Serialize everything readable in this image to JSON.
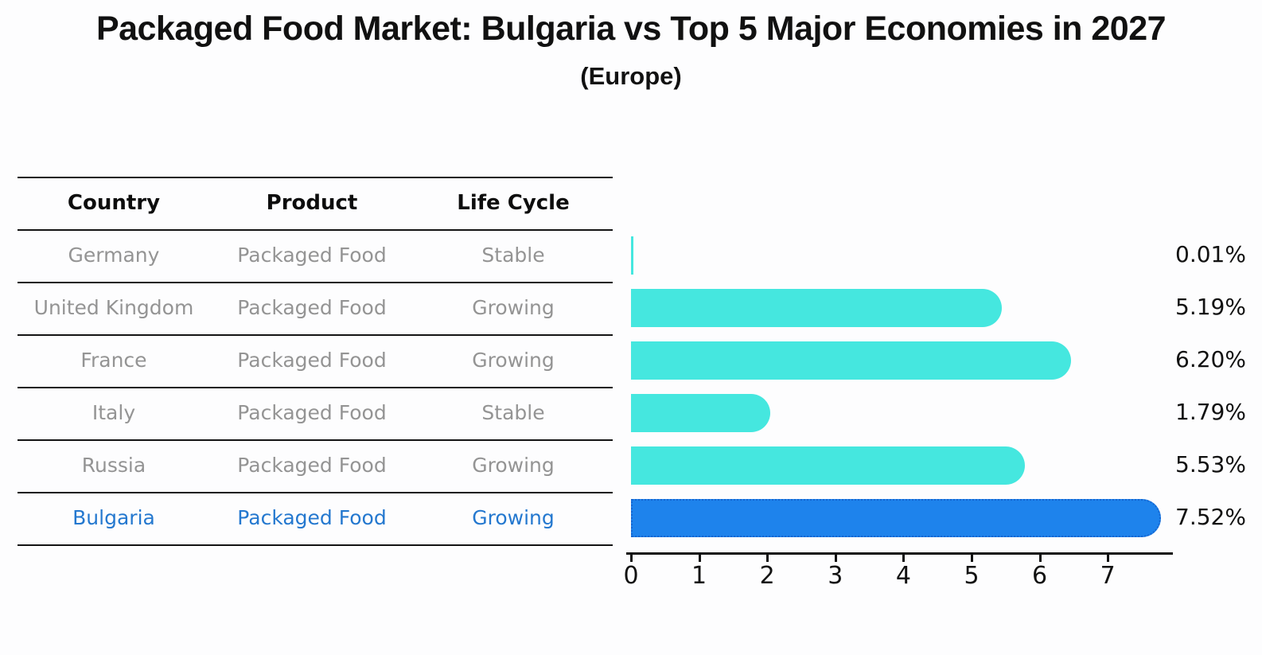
{
  "title": "Packaged Food Market: Bulgaria vs Top 5 Major Economies in 2027",
  "subtitle": "(Europe)",
  "table": {
    "headers": [
      "Country",
      "Product",
      "Life Cycle"
    ],
    "rows": [
      {
        "country": "Germany",
        "product": "Packaged Food",
        "life_cycle": "Stable",
        "highlighted": false
      },
      {
        "country": "United Kingdom",
        "product": "Packaged Food",
        "life_cycle": "Growing",
        "highlighted": false
      },
      {
        "country": "France",
        "product": "Packaged Food",
        "life_cycle": "Growing",
        "highlighted": false
      },
      {
        "country": "Italy",
        "product": "Packaged Food",
        "life_cycle": "Stable",
        "highlighted": false
      },
      {
        "country": "Russia",
        "product": "Packaged Food",
        "life_cycle": "Growing",
        "highlighted": true
      }
    ],
    "highlight_row": {
      "country": "Bulgaria",
      "product": "Packaged Food",
      "life_cycle": "Growing"
    }
  },
  "chart_data": {
    "type": "bar",
    "orientation": "horizontal",
    "title": "Packaged Food Market: Bulgaria vs Top 5 Major Economies in 2027 (Europe)",
    "categories": [
      "Germany",
      "United Kingdom",
      "France",
      "Italy",
      "Russia",
      "Bulgaria"
    ],
    "values": [
      0.01,
      5.19,
      6.2,
      1.79,
      5.53,
      7.52
    ],
    "value_labels": [
      "0.01%",
      "5.19%",
      "6.20%",
      "1.79%",
      "5.53%",
      "7.52%"
    ],
    "units": "percent CAGR",
    "xticks": [
      0,
      1,
      2,
      3,
      4,
      5,
      6,
      7
    ],
    "xlim": [
      0,
      7.93
    ],
    "grid": false,
    "legend": false,
    "bar_color": "#45e7df",
    "highlight_index": 5,
    "highlight_bar_color": "#1e83ec",
    "highlight_border_color": "#1565d0",
    "row_text_color": "#949494",
    "highlight_text_color": "#2478cf",
    "axis_color": "#111111"
  }
}
